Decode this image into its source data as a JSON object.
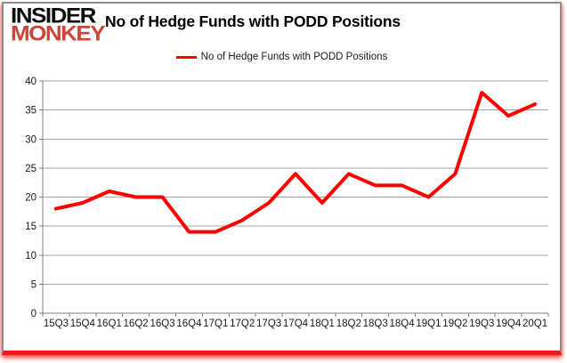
{
  "header": {
    "logo_line1": "INSIDER",
    "logo_line2": "MONKEY",
    "title": "No of Hedge Funds with PODD Positions"
  },
  "legend": {
    "label": "No of Hedge Funds with PODD Positions"
  },
  "colors": {
    "line": "#ff0000",
    "grid": "#a6a6a6",
    "axis": "#808080",
    "tick_text": "#1a1a1a",
    "logo_black": "#0d0d0d",
    "logo_red": "#cc4639",
    "card_border": "#8c8c8c",
    "card_border_bottom": "#ee1b16"
  },
  "chart_data": {
    "type": "line",
    "title": "No of Hedge Funds with PODD Positions",
    "categories": [
      "15Q3",
      "15Q4",
      "16Q1",
      "16Q2",
      "16Q3",
      "16Q4",
      "17Q1",
      "17Q2",
      "17Q3",
      "17Q4",
      "18Q1",
      "18Q2",
      "18Q3",
      "18Q4",
      "19Q1",
      "19Q2",
      "19Q3",
      "19Q4",
      "20Q1"
    ],
    "series": [
      {
        "name": "No of Hedge Funds with PODD Positions",
        "color": "#ff0000",
        "values": [
          18,
          19,
          21,
          20,
          20,
          14,
          14,
          16,
          19,
          24,
          19,
          24,
          22,
          22,
          20,
          24,
          38,
          34,
          36
        ]
      }
    ],
    "xlabel": "",
    "ylabel": "",
    "ylim": [
      0,
      40
    ],
    "ytick_interval": 5,
    "grid": "horizontal",
    "legend_position": "top-center"
  }
}
